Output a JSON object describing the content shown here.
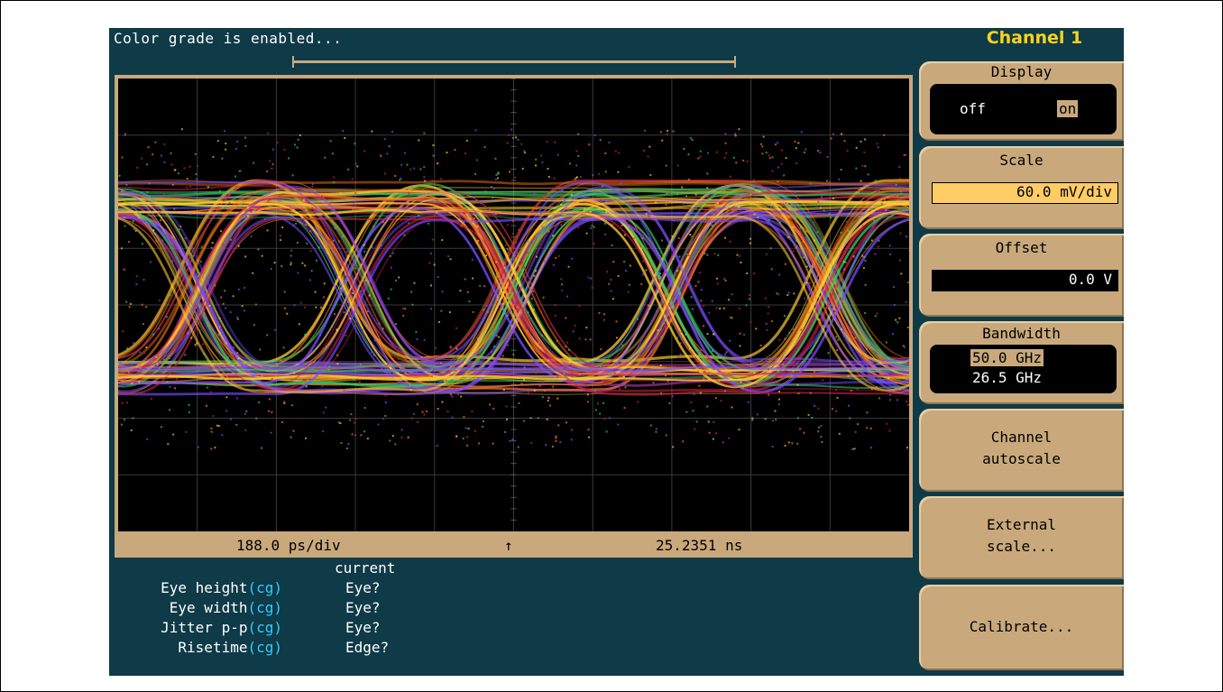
{
  "status_message": "Color grade is enabled...",
  "menu": {
    "title": "Channel 1",
    "display": {
      "label": "Display",
      "off": "off",
      "on": "on"
    },
    "scale": {
      "label": "Scale",
      "value": "60.0 mV/div"
    },
    "offset": {
      "label": "Offset",
      "value": "0.0 V"
    },
    "bandwidth": {
      "label": "Bandwidth",
      "options": [
        "50.0 GHz",
        "26.5 GHz"
      ]
    },
    "autoscale": {
      "line1": "Channel",
      "line2": "autoscale"
    },
    "external_scale": {
      "line1": "External",
      "line2": "scale..."
    },
    "calibrate": {
      "label": "Calibrate..."
    }
  },
  "timebase": {
    "scale": "188.0 ps/div",
    "marker": "↑",
    "position": "25.2351 ns"
  },
  "measurements": {
    "column_header": "current",
    "rows": [
      {
        "name": "Eye height",
        "suffix": "(cg)",
        "value": "Eye?"
      },
      {
        "name": "Eye width",
        "suffix": "(cg)",
        "value": "Eye?"
      },
      {
        "name": "Jitter p-p",
        "suffix": "(cg)",
        "value": "Eye?"
      },
      {
        "name": "Risetime",
        "suffix": "(cg)",
        "value": "Edge?"
      }
    ]
  },
  "colors": {
    "background": "#0f3a47",
    "softkey": "#c9a97c",
    "title": "#ffd21a",
    "cg_text": "#33ccff",
    "trace_hot": "#ffcc33",
    "trace_mid": "#ff7a1a",
    "trace_low": "#cc2244",
    "trace_edge": "#7a4cff",
    "trace_fringe": "#33cc66"
  }
}
